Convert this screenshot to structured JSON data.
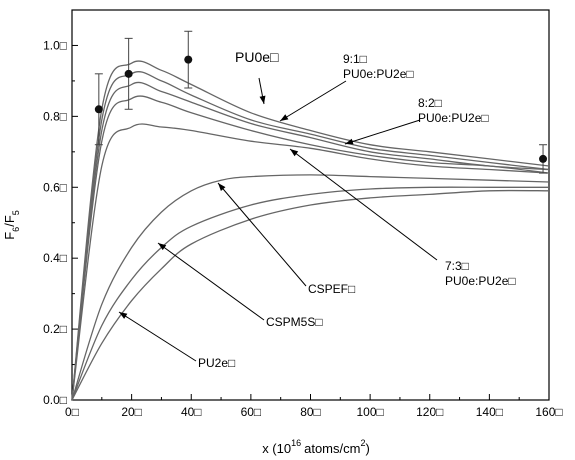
{
  "chart_data": {
    "type": "line",
    "xlabel": "x (10¹⁶ atoms/cm²)",
    "ylabel": "F6F5",
    "xlim": [
      0,
      160
    ],
    "ylim": [
      0,
      1.1
    ],
    "x_ticks": [
      0,
      20,
      40,
      60,
      80,
      100,
      120,
      140,
      160
    ],
    "x_tick_labels": [
      "0□",
      "20□",
      "40□",
      "60□",
      "80□",
      "100□",
      "120□",
      "140□",
      "160□"
    ],
    "y_ticks": [
      0,
      0.2,
      0.4,
      0.6,
      0.8,
      1.0
    ],
    "y_tick_labels": [
      "0.0□",
      "0.2□",
      "0.4□",
      "0.6□",
      "0.8□",
      "1.0□"
    ],
    "axis_label_parts": {
      "x_main": "x (10",
      "x_sup": "16",
      "x_mid": "atoms/cm",
      "x_sup2": "2",
      "x_end": ")",
      "y_main": "F",
      "y_sub1": "6",
      "y_mid": "/F",
      "y_sub2": "5"
    },
    "series": [
      {
        "name": "PU0e",
        "x": [
          0,
          10,
          20,
          30,
          40,
          60,
          80,
          100,
          120,
          140,
          160
        ],
        "values": [
          0,
          0.82,
          0.95,
          0.93,
          0.89,
          0.81,
          0.76,
          0.72,
          0.7,
          0.68,
          0.66
        ]
      },
      {
        "name": "9:1 PU0e:PU2e",
        "x": [
          0,
          10,
          20,
          30,
          40,
          60,
          80,
          100,
          120,
          140,
          160
        ],
        "values": [
          0,
          0.79,
          0.92,
          0.9,
          0.86,
          0.79,
          0.75,
          0.71,
          0.69,
          0.67,
          0.65
        ]
      },
      {
        "name": "8:2 PU0e:PU2e",
        "x": [
          0,
          10,
          20,
          30,
          40,
          60,
          80,
          100,
          120,
          140,
          160
        ],
        "values": [
          0,
          0.76,
          0.89,
          0.87,
          0.84,
          0.78,
          0.74,
          0.7,
          0.68,
          0.66,
          0.65
        ]
      },
      {
        "name": "",
        "x": [
          0,
          10,
          20,
          30,
          40,
          60,
          80,
          100,
          120,
          140,
          160
        ],
        "values": [
          0,
          0.73,
          0.85,
          0.84,
          0.81,
          0.76,
          0.72,
          0.69,
          0.67,
          0.66,
          0.64
        ]
      },
      {
        "name": "7:3 PU0e:PU2e",
        "x": [
          0,
          10,
          20,
          30,
          40,
          60,
          80,
          100,
          120,
          140,
          160
        ],
        "values": [
          0,
          0.66,
          0.77,
          0.77,
          0.76,
          0.73,
          0.71,
          0.68,
          0.66,
          0.65,
          0.64
        ]
      },
      {
        "name": "CSPEF",
        "x": [
          0,
          10,
          20,
          30,
          40,
          50,
          60,
          80,
          100,
          120,
          140,
          160
        ],
        "values": [
          0,
          0.27,
          0.43,
          0.53,
          0.59,
          0.62,
          0.63,
          0.635,
          0.63,
          0.625,
          0.62,
          0.615
        ]
      },
      {
        "name": "CSPM5S",
        "x": [
          0,
          10,
          20,
          30,
          40,
          60,
          80,
          100,
          120,
          140,
          160
        ],
        "values": [
          0,
          0.21,
          0.34,
          0.43,
          0.49,
          0.55,
          0.58,
          0.595,
          0.6,
          0.6,
          0.6
        ]
      },
      {
        "name": "PU2e",
        "x": [
          0,
          10,
          20,
          30,
          40,
          60,
          80,
          100,
          120,
          140,
          160
        ],
        "values": [
          0,
          0.16,
          0.28,
          0.37,
          0.44,
          0.51,
          0.55,
          0.57,
          0.58,
          0.59,
          0.59
        ]
      }
    ],
    "experimental": {
      "name": "data points",
      "x": [
        9,
        19,
        39,
        158
      ],
      "y": [
        0.82,
        0.92,
        0.96,
        0.68
      ],
      "err": [
        0.1,
        0.1,
        0.08,
        0.04
      ]
    },
    "annotations": [
      {
        "lines": [
          "PU0e□"
        ],
        "size": "large"
      },
      {
        "lines": [
          "9:1□",
          "PU0e:PU2e□"
        ]
      },
      {
        "lines": [
          "8:2□",
          "PU0e:PU2e□"
        ]
      },
      {
        "lines": [
          "7:3□",
          "PU0e:PU2e□"
        ]
      },
      {
        "lines": [
          "CSPEF□"
        ]
      },
      {
        "lines": [
          "CSPM5S□"
        ]
      },
      {
        "lines": [
          "PU2e□"
        ]
      }
    ]
  }
}
